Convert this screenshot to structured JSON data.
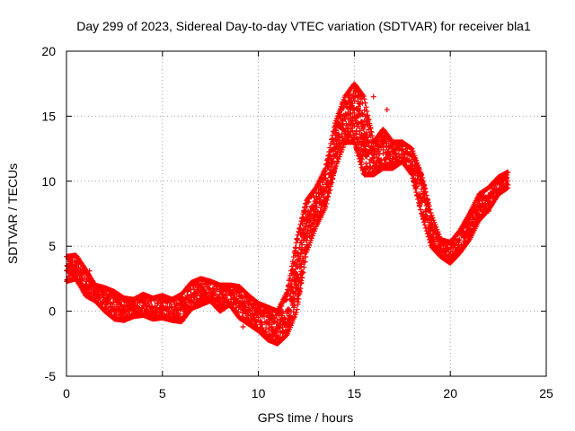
{
  "chart_data": {
    "type": "scatter",
    "title": "Day 299 of 2023, Sidereal Day-to-day VTEC variation (SDTVAR) for receiver bla1",
    "xlabel": "GPS time / hours",
    "ylabel": "SDTVAR / TECUs",
    "xlim": [
      0,
      25
    ],
    "ylim": [
      -5,
      20
    ],
    "xticks": [
      "0",
      "5",
      "10",
      "15",
      "20",
      "25"
    ],
    "yticks": [
      "-5",
      "0",
      "5",
      "10",
      "15",
      "20"
    ],
    "grid": true,
    "marker": "+",
    "color": "#ff0000",
    "series": [
      {
        "name": "SDTVAR",
        "band": [
          {
            "x": 0.0,
            "lo": 2.3,
            "hi": 4.2
          },
          {
            "x": 0.5,
            "lo": 2.5,
            "hi": 4.3
          },
          {
            "x": 1.0,
            "lo": 1.2,
            "hi": 3.2
          },
          {
            "x": 1.5,
            "lo": 0.8,
            "hi": 2.0
          },
          {
            "x": 2.0,
            "lo": 0.0,
            "hi": 1.8
          },
          {
            "x": 2.5,
            "lo": -0.6,
            "hi": 1.5
          },
          {
            "x": 3.0,
            "lo": -0.7,
            "hi": 1.0
          },
          {
            "x": 3.5,
            "lo": -0.4,
            "hi": 0.9
          },
          {
            "x": 4.0,
            "lo": -0.3,
            "hi": 1.3
          },
          {
            "x": 4.5,
            "lo": -0.6,
            "hi": 1.0
          },
          {
            "x": 5.0,
            "lo": -0.5,
            "hi": 1.2
          },
          {
            "x": 5.5,
            "lo": -0.7,
            "hi": 0.9
          },
          {
            "x": 6.0,
            "lo": -0.8,
            "hi": 1.3
          },
          {
            "x": 6.5,
            "lo": 0.2,
            "hi": 2.2
          },
          {
            "x": 7.0,
            "lo": 0.5,
            "hi": 2.5
          },
          {
            "x": 7.5,
            "lo": 0.8,
            "hi": 2.3
          },
          {
            "x": 8.0,
            "lo": 0.0,
            "hi": 2.0
          },
          {
            "x": 8.5,
            "lo": 0.5,
            "hi": 2.0
          },
          {
            "x": 9.0,
            "lo": -0.5,
            "hi": 1.9
          },
          {
            "x": 9.5,
            "lo": -1.0,
            "hi": 1.2
          },
          {
            "x": 10.0,
            "lo": -1.5,
            "hi": 0.6
          },
          {
            "x": 10.5,
            "lo": -2.2,
            "hi": 0.3
          },
          {
            "x": 11.0,
            "lo": -2.5,
            "hi": 0.0
          },
          {
            "x": 11.5,
            "lo": -1.8,
            "hi": 1.5
          },
          {
            "x": 12.0,
            "lo": 0.0,
            "hi": 5.5
          },
          {
            "x": 12.5,
            "lo": 4.5,
            "hi": 8.5
          },
          {
            "x": 13.0,
            "lo": 6.5,
            "hi": 9.5
          },
          {
            "x": 13.5,
            "lo": 8.0,
            "hi": 11.0
          },
          {
            "x": 14.0,
            "lo": 11.0,
            "hi": 14.5
          },
          {
            "x": 14.5,
            "lo": 13.0,
            "hi": 16.5
          },
          {
            "x": 15.0,
            "lo": 13.0,
            "hi": 17.5
          },
          {
            "x": 15.5,
            "lo": 10.5,
            "hi": 16.5
          },
          {
            "x": 16.0,
            "lo": 10.5,
            "hi": 13.0
          },
          {
            "x": 16.5,
            "lo": 11.0,
            "hi": 14.0
          },
          {
            "x": 17.0,
            "lo": 11.0,
            "hi": 13.0
          },
          {
            "x": 17.5,
            "lo": 11.5,
            "hi": 13.0
          },
          {
            "x": 18.0,
            "lo": 10.5,
            "hi": 12.5
          },
          {
            "x": 18.5,
            "lo": 7.5,
            "hi": 10.5
          },
          {
            "x": 19.0,
            "lo": 5.0,
            "hi": 7.5
          },
          {
            "x": 19.5,
            "lo": 4.2,
            "hi": 5.5
          },
          {
            "x": 20.0,
            "lo": 3.7,
            "hi": 5.3
          },
          {
            "x": 20.5,
            "lo": 4.5,
            "hi": 6.2
          },
          {
            "x": 21.0,
            "lo": 5.5,
            "hi": 7.5
          },
          {
            "x": 21.5,
            "lo": 7.0,
            "hi": 9.0
          },
          {
            "x": 22.0,
            "lo": 7.8,
            "hi": 9.5
          },
          {
            "x": 22.5,
            "lo": 9.0,
            "hi": 10.3
          },
          {
            "x": 23.0,
            "lo": 9.5,
            "hi": 10.7
          }
        ]
      }
    ],
    "outliers": [
      {
        "x": 1.2,
        "y": 3.1
      },
      {
        "x": 15.2,
        "y": 14.5
      },
      {
        "x": 16.0,
        "y": 16.5
      },
      {
        "x": 16.7,
        "y": 15.5
      },
      {
        "x": 22.0,
        "y": 7.7
      },
      {
        "x": 9.2,
        "y": -1.2
      }
    ]
  }
}
